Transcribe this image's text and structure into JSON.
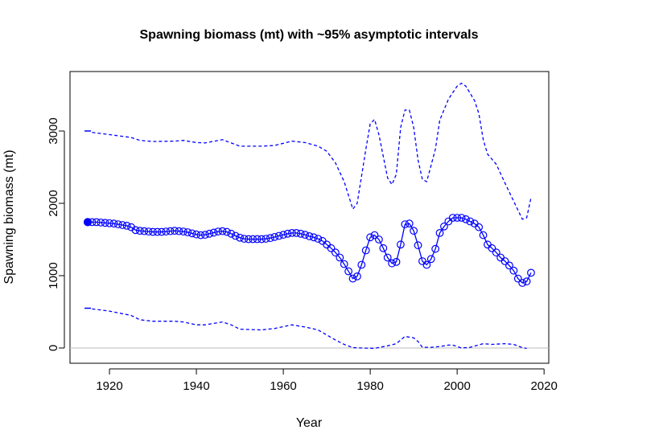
{
  "chart_data": {
    "type": "line",
    "title": "Spawning biomass (mt) with ~95% asymptotic intervals",
    "x_label": "Year",
    "y_label": "Spawning biomass (mt)",
    "xlim": [
      1910.92,
      2021.08
    ],
    "ylim": [
      -211,
      3822
    ],
    "xticks": [
      1920,
      1940,
      1960,
      1980,
      2000,
      2020
    ],
    "yticks": [
      0,
      1000,
      2000,
      3000
    ],
    "reference_line": 0,
    "reference_color": "#bbbbbb",
    "series": [
      {
        "color": "#0000ff",
        "style": "solid",
        "markers": true,
        "first_point_filled": true,
        "x": [
          1915,
          1916,
          1917,
          1918,
          1919,
          1920,
          1921,
          1922,
          1923,
          1924,
          1925,
          1926,
          1927,
          1928,
          1929,
          1930,
          1931,
          1932,
          1933,
          1934,
          1935,
          1936,
          1937,
          1938,
          1939,
          1940,
          1941,
          1942,
          1943,
          1944,
          1945,
          1946,
          1947,
          1948,
          1949,
          1950,
          1951,
          1952,
          1953,
          1954,
          1955,
          1956,
          1957,
          1958,
          1959,
          1960,
          1961,
          1962,
          1963,
          1964,
          1965,
          1966,
          1967,
          1968,
          1969,
          1970,
          1971,
          1972,
          1973,
          1974,
          1975,
          1976,
          1977,
          1978,
          1979,
          1980,
          1981,
          1982,
          1983,
          1984,
          1985,
          1986,
          1987,
          1988,
          1989,
          1990,
          1991,
          1992,
          1993,
          1994,
          1995,
          1996,
          1997,
          1998,
          1999,
          2000,
          2001,
          2002,
          2003,
          2004,
          2005,
          2006,
          2007,
          2008,
          2009,
          2010,
          2011,
          2012,
          2013,
          2014,
          2015,
          2016,
          2017
        ],
        "values": [
          1740,
          1740,
          1740,
          1735,
          1730,
          1725,
          1720,
          1710,
          1700,
          1690,
          1670,
          1630,
          1620,
          1615,
          1610,
          1605,
          1605,
          1605,
          1610,
          1615,
          1620,
          1615,
          1610,
          1600,
          1585,
          1570,
          1560,
          1565,
          1580,
          1595,
          1610,
          1615,
          1605,
          1580,
          1550,
          1525,
          1510,
          1505,
          1505,
          1505,
          1505,
          1510,
          1520,
          1535,
          1550,
          1565,
          1580,
          1590,
          1590,
          1580,
          1565,
          1545,
          1530,
          1510,
          1480,
          1430,
          1380,
          1320,
          1250,
          1160,
          1060,
          960,
          990,
          1150,
          1350,
          1530,
          1560,
          1500,
          1380,
          1250,
          1170,
          1190,
          1430,
          1710,
          1720,
          1620,
          1420,
          1200,
          1150,
          1230,
          1370,
          1590,
          1680,
          1750,
          1800,
          1800,
          1800,
          1780,
          1750,
          1720,
          1670,
          1560,
          1430,
          1380,
          1320,
          1250,
          1200,
          1140,
          1070,
          960,
          900,
          920,
          1040
        ]
      },
      {
        "color": "#0000ff",
        "style": "dashed",
        "markers": false,
        "x": [
          1916,
          1920,
          1925,
          1927,
          1930,
          1935,
          1937,
          1940,
          1942,
          1946,
          1950,
          1955,
          1958,
          1962,
          1965,
          1968,
          1970,
          1972,
          1974,
          1976,
          1977,
          1979,
          1980,
          1981,
          1982,
          1984,
          1985,
          1986,
          1987,
          1988,
          1989,
          1990,
          1991,
          1992,
          1993,
          1995,
          1996,
          1998,
          2000,
          2001,
          2002,
          2004,
          2005,
          2006,
          2007,
          2009,
          2011,
          2013,
          2015,
          2016,
          2017
        ],
        "values": [
          2980,
          2950,
          2910,
          2870,
          2855,
          2860,
          2870,
          2840,
          2835,
          2880,
          2790,
          2790,
          2800,
          2860,
          2840,
          2790,
          2720,
          2560,
          2300,
          1920,
          2000,
          2750,
          3100,
          3160,
          2950,
          2350,
          2260,
          2400,
          3050,
          3290,
          3290,
          3050,
          2600,
          2330,
          2300,
          2750,
          3150,
          3440,
          3620,
          3660,
          3620,
          3420,
          3240,
          2880,
          2680,
          2540,
          2280,
          2030,
          1780,
          1800,
          2080
        ]
      },
      {
        "color": "#0000ff",
        "style": "dashed",
        "markers": false,
        "x": [
          1916,
          1920,
          1925,
          1927,
          1930,
          1935,
          1937,
          1940,
          1942,
          1946,
          1948,
          1950,
          1955,
          1958,
          1962,
          1965,
          1968,
          1970,
          1972,
          1974,
          1976,
          1978,
          1981,
          1984,
          1986,
          1988,
          1990,
          1991,
          1992,
          1994,
          1996,
          1998,
          1999,
          2001,
          2003,
          2006,
          2008,
          2011,
          2013,
          2015,
          2016
        ],
        "values": [
          540,
          510,
          450,
          390,
          370,
          370,
          360,
          320,
          320,
          360,
          320,
          260,
          250,
          270,
          320,
          290,
          250,
          180,
          110,
          50,
          5,
          0,
          -5,
          30,
          60,
          160,
          140,
          90,
          10,
          10,
          20,
          40,
          40,
          0,
          10,
          60,
          50,
          60,
          50,
          5,
          -5
        ]
      }
    ],
    "initial_interval": {
      "x": 1915,
      "values": [
        550,
        3000
      ],
      "color": "#0000ff"
    }
  }
}
